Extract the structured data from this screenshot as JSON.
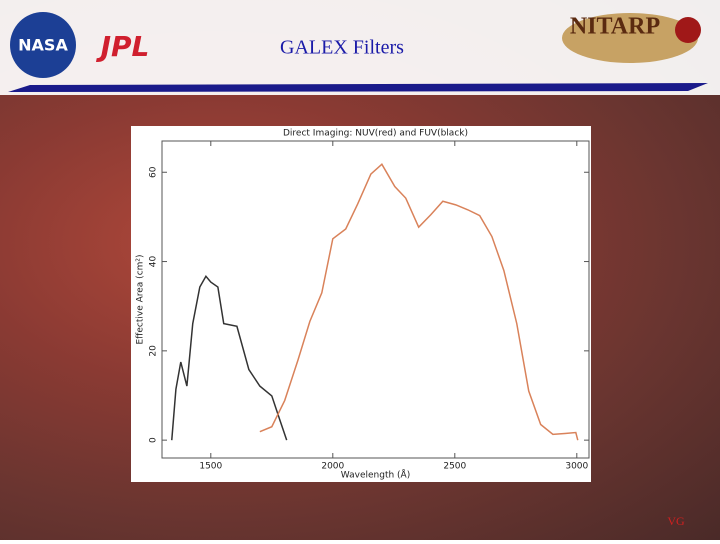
{
  "slide": {
    "title": "GALEX Filters",
    "footer": "VG",
    "logos": [
      "NASA",
      "JPL",
      "NITARP"
    ]
  },
  "chart_data": {
    "type": "line",
    "title": "Direct Imaging: NUV(red) and FUV(black)",
    "x_label": "Wavelength (Å)",
    "y_label": "Effective Area (cm²)",
    "xlim": [
      1300,
      3050
    ],
    "ylim": [
      -4,
      67
    ],
    "xticks": [
      1500,
      2000,
      2500,
      3000
    ],
    "yticks": [
      0,
      20,
      40,
      60
    ],
    "series": [
      {
        "name": "FUV",
        "color": "#333333",
        "x": [
          1340,
          1357,
          1377,
          1402,
          1426,
          1455,
          1480,
          1500,
          1529,
          1553,
          1607,
          1656,
          1701,
          1750,
          1783,
          1811
        ],
        "values": [
          0,
          11.4,
          17.5,
          12.1,
          26.1,
          34.3,
          36.7,
          35.4,
          34.3,
          26.1,
          25.5,
          15.8,
          12.1,
          9.9,
          4.5,
          0
        ]
      },
      {
        "name": "NUV",
        "color": "#d9825a",
        "x": [
          1701,
          1750,
          1803,
          1857,
          1906,
          1955,
          2000,
          2053,
          2102,
          2156,
          2201,
          2254,
          2299,
          2352,
          2402,
          2451,
          2504,
          2553,
          2602,
          2652,
          2701,
          2754,
          2803,
          2852,
          2902,
          2951,
          2996,
          3004
        ],
        "values": [
          1.9,
          3.0,
          8.9,
          17.9,
          26.6,
          33.0,
          45.1,
          47.3,
          52.9,
          59.6,
          61.8,
          56.8,
          54.2,
          47.7,
          50.5,
          53.5,
          52.7,
          51.6,
          50.3,
          45.6,
          38.0,
          26.1,
          11.0,
          3.5,
          1.3,
          1.5,
          1.7,
          0
        ]
      }
    ]
  }
}
